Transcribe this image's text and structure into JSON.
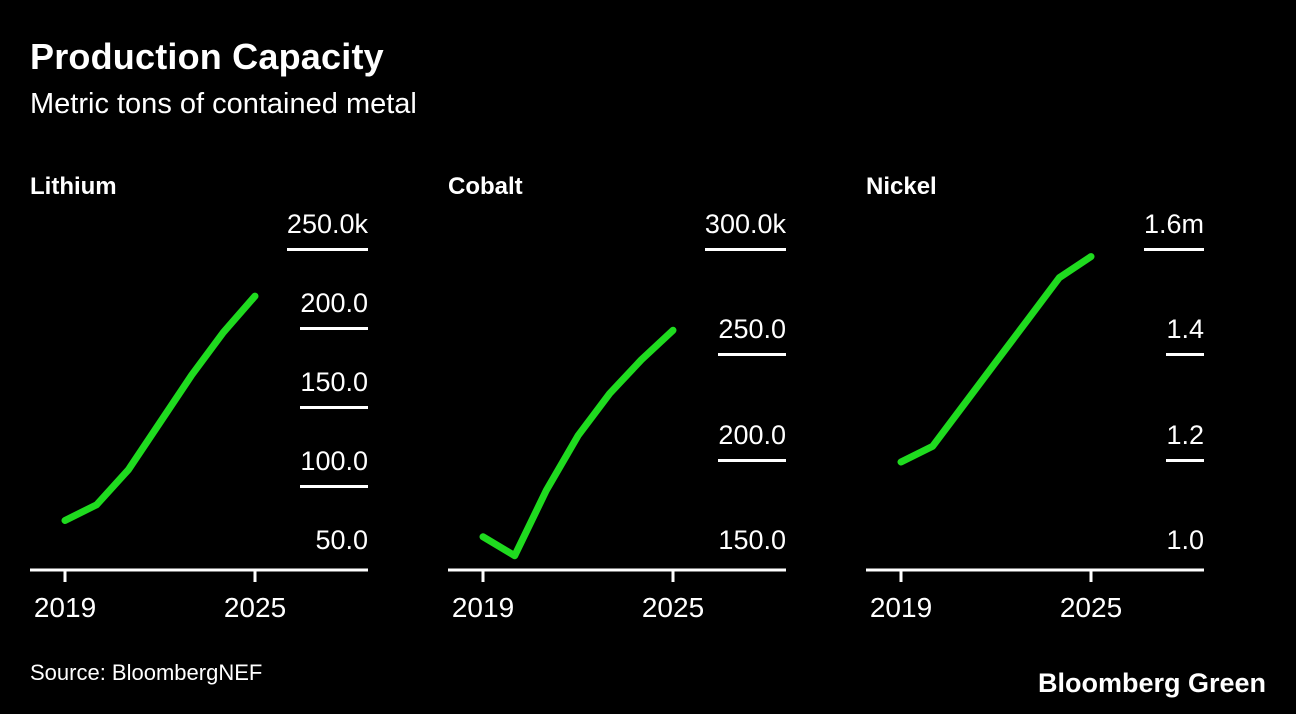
{
  "header": {
    "title": "Production Capacity",
    "subtitle": "Metric tons of contained metal"
  },
  "footer": {
    "source": "Source: BloombergNEF",
    "brand": "Bloomberg Green"
  },
  "colors": {
    "background": "#000000",
    "text": "#ffffff",
    "line": "#1fdb1f",
    "axis": "#ffffff"
  },
  "chart_data": [
    {
      "type": "line",
      "name": "Lithium",
      "x": [
        2019,
        2020,
        2021,
        2022,
        2023,
        2024,
        2025
      ],
      "values": [
        63,
        73,
        95,
        125,
        155,
        182,
        205
      ],
      "ylim": [
        50,
        250
      ],
      "grid": false,
      "legend": "none",
      "yticks": [
        {
          "label": "250.0k",
          "value": 250
        },
        {
          "label": "200.0",
          "value": 200
        },
        {
          "label": "150.0",
          "value": 150
        },
        {
          "label": "100.0",
          "value": 100
        },
        {
          "label": "50.0",
          "value": 50
        }
      ],
      "xticks": [
        {
          "label": "2019",
          "value": 2019
        },
        {
          "label": "2025",
          "value": 2025
        }
      ]
    },
    {
      "type": "line",
      "name": "Cobalt",
      "x": [
        2019,
        2020,
        2021,
        2022,
        2023,
        2024,
        2025
      ],
      "values": [
        152,
        143,
        174,
        200,
        220,
        236,
        250
      ],
      "ylim": [
        150,
        300
      ],
      "grid": false,
      "legend": "none",
      "yticks": [
        {
          "label": "300.0k",
          "value": 300
        },
        {
          "label": "250.0",
          "value": 250
        },
        {
          "label": "200.0",
          "value": 200
        },
        {
          "label": "150.0",
          "value": 150
        }
      ],
      "xticks": [
        {
          "label": "2019",
          "value": 2019
        },
        {
          "label": "2025",
          "value": 2025
        }
      ]
    },
    {
      "type": "line",
      "name": "Nickel",
      "x": [
        2019,
        2020,
        2021,
        2022,
        2023,
        2024,
        2025
      ],
      "values": [
        1.15,
        1.18,
        1.26,
        1.34,
        1.42,
        1.5,
        1.54
      ],
      "ylim": [
        1.0,
        1.6
      ],
      "grid": false,
      "legend": "none",
      "yticks": [
        {
          "label": "1.6m",
          "value": 1.6
        },
        {
          "label": "1.4",
          "value": 1.4
        },
        {
          "label": "1.2",
          "value": 1.2
        },
        {
          "label": "1.0",
          "value": 1.0
        }
      ],
      "xticks": [
        {
          "label": "2019",
          "value": 2019
        },
        {
          "label": "2025",
          "value": 2025
        }
      ]
    }
  ]
}
